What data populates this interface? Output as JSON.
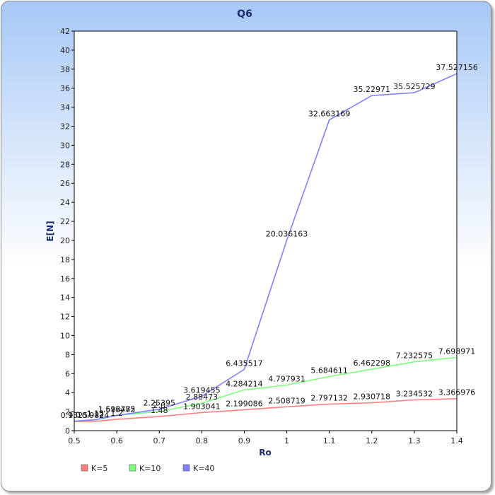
{
  "chart_data": {
    "type": "line",
    "title": "Q6",
    "xlabel": "Ro",
    "ylabel": "E[N]",
    "xlim": [
      0.5,
      1.4
    ],
    "ylim": [
      0,
      42
    ],
    "x_ticks": [
      "0.5",
      "0.6",
      "0.7",
      "0.8",
      "0.9",
      "1",
      "1.1",
      "1.2",
      "1.3",
      "1.4"
    ],
    "y_ticks": [
      "0",
      "2",
      "4",
      "6",
      "8",
      "10",
      "12",
      "14",
      "16",
      "18",
      "20",
      "22",
      "24",
      "26",
      "28",
      "30",
      "32",
      "34",
      "36",
      "38",
      "40",
      "42"
    ],
    "grid": false,
    "legend_position": "bottom-left",
    "series": [
      {
        "name": "K=5",
        "color": "#ff8080",
        "x": [
          0.5,
          0.55,
          0.6,
          0.7,
          0.8,
          0.9,
          1.0,
          1.1,
          1.2,
          1.3,
          1.4
        ],
        "y": [
          0.95,
          0.98,
          1.2,
          1.48,
          1.903041,
          2.199086,
          2.508719,
          2.797132,
          2.930718,
          3.234532,
          3.366976
        ],
        "labels": [
          "0.9525",
          "0.9824",
          "1.2",
          "1.48",
          "1.903041",
          "2.199086",
          "2.508719",
          "2.797132",
          "2.930718",
          "3.234532",
          "3.366976"
        ]
      },
      {
        "name": "K=10",
        "color": "#80ff80",
        "x": [
          0.5,
          0.55,
          0.6,
          0.7,
          0.8,
          0.9,
          1.0,
          1.1,
          1.2,
          1.3,
          1.4
        ],
        "y": [
          1.0,
          1.12,
          1.616475,
          2.0,
          2.88473,
          4.284214,
          4.797931,
          5.684611,
          6.462298,
          7.232575,
          7.698971
        ],
        "labels": [
          "1.0",
          "1.12",
          "1.616475",
          "2.0",
          "2.88473",
          "4.284214",
          "4.797931",
          "5.684611",
          "6.462298",
          "7.232575",
          "7.698971"
        ]
      },
      {
        "name": "K=40",
        "color": "#8080ff",
        "x": [
          0.5,
          0.55,
          0.6,
          0.7,
          0.8,
          0.9,
          1.0,
          1.1,
          1.2,
          1.3,
          1.4
        ],
        "y": [
          1.0,
          1.15,
          1.592782,
          2.25395,
          3.619455,
          6.435517,
          20.036163,
          32.663169,
          35.22971,
          35.525729,
          37.527156
        ],
        "labels": [
          "1.0",
          "1.15",
          "1.592782",
          "2.25395",
          "3.619455",
          "6.435517",
          "20.036163",
          "32.663169",
          "35.22971",
          "35.525729",
          "37.527156"
        ]
      }
    ]
  }
}
